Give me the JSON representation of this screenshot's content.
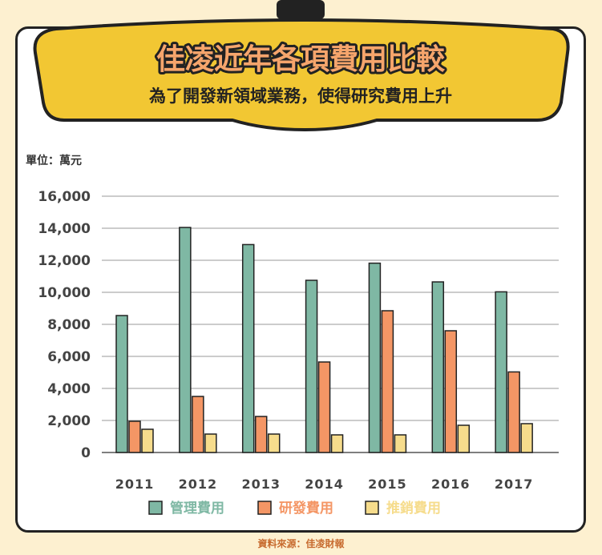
{
  "header": {
    "title": "佳凌近年各項費用比較",
    "subtitle": "為了開發新領域業務，使得研究費用上升"
  },
  "source": "資料來源：佳凌財報",
  "colors": {
    "background": "#fdf0d0",
    "banner_fill": "#f2c733",
    "title_fill": "#f6a56c",
    "management": "#7fb8a4",
    "rnd": "#f49665",
    "sales": "#f6dc8c"
  },
  "chart_data": {
    "type": "bar",
    "unit_label": "單位：萬元",
    "categories": [
      "2011",
      "2012",
      "2013",
      "2014",
      "2015",
      "2016",
      "2017"
    ],
    "series": [
      {
        "name": "管理費用",
        "values": [
          8550,
          14050,
          12980,
          10750,
          11820,
          10650,
          10030
        ]
      },
      {
        "name": "研發費用",
        "values": [
          1950,
          3500,
          2250,
          5650,
          8850,
          7600,
          5030
        ]
      },
      {
        "name": "推銷費用",
        "values": [
          1450,
          1150,
          1150,
          1100,
          1100,
          1700,
          1800
        ]
      }
    ],
    "ylim": [
      0,
      16000
    ],
    "yticks": [
      "0",
      "2,000",
      "4,000",
      "6,000",
      "8,000",
      "10,000",
      "12,000",
      "14,000",
      "16,000"
    ],
    "grid": true,
    "legend_position": "bottom"
  }
}
